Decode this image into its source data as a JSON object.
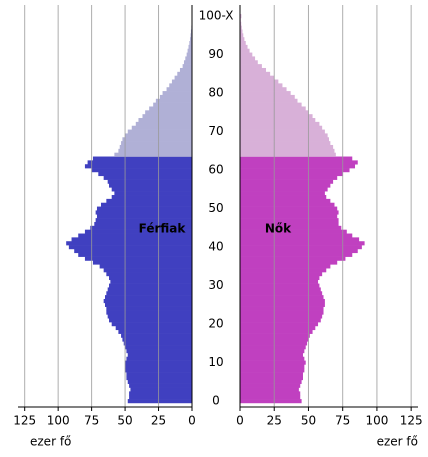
{
  "chart_data": {
    "type": "population_pyramid",
    "x_label": "ezer fő",
    "xlim": [
      0,
      130
    ],
    "xticks": [
      0,
      25,
      50,
      75,
      100,
      125
    ],
    "grid": true,
    "color_split_index": 64,
    "categories": [
      "0",
      null,
      null,
      null,
      null,
      null,
      null,
      null,
      null,
      null,
      "10",
      null,
      null,
      null,
      null,
      null,
      null,
      null,
      null,
      null,
      "20",
      null,
      null,
      null,
      null,
      null,
      null,
      null,
      null,
      null,
      "30",
      null,
      null,
      null,
      null,
      null,
      null,
      null,
      null,
      null,
      "40",
      null,
      null,
      null,
      null,
      null,
      null,
      null,
      null,
      null,
      "50",
      null,
      null,
      null,
      null,
      null,
      null,
      null,
      null,
      null,
      "60",
      null,
      null,
      null,
      null,
      null,
      null,
      null,
      null,
      null,
      "70",
      null,
      null,
      null,
      null,
      null,
      null,
      null,
      null,
      null,
      "80",
      null,
      null,
      null,
      null,
      null,
      null,
      null,
      null,
      null,
      "90",
      null,
      null,
      null,
      null,
      null,
      null,
      null,
      null,
      null,
      "100-X"
    ],
    "series": [
      {
        "name": "Férfiak",
        "side": "left",
        "color": "#4040c0",
        "color_upper": "#b0b0d6",
        "values": [
          48,
          47,
          47,
          46,
          47,
          48,
          49,
          49,
          50,
          50,
          50,
          49,
          48,
          49,
          50,
          51,
          52,
          53,
          55,
          57,
          60,
          62,
          63,
          64,
          64,
          65,
          66,
          65,
          64,
          63,
          62,
          61,
          62,
          64,
          66,
          69,
          74,
          80,
          85,
          88,
          92,
          94,
          90,
          85,
          80,
          76,
          73,
          72,
          71,
          72,
          71,
          68,
          64,
          60,
          58,
          60,
          62,
          63,
          66,
          70,
          75,
          80,
          78,
          74,
          58,
          55,
          54,
          53,
          52,
          50,
          48,
          45,
          42,
          40,
          37,
          35,
          32,
          29,
          27,
          24,
          22,
          19,
          17,
          15,
          13,
          11,
          9,
          7,
          6,
          5,
          4,
          3.3,
          2.6,
          2,
          1.5,
          1.1,
          0.8,
          0.5,
          0.3,
          0.2,
          0.3
        ]
      },
      {
        "name": "Nők",
        "side": "right",
        "color": "#c040c0",
        "color_upper": "#d8b0d8",
        "values": [
          45,
          44,
          44,
          43,
          44,
          45,
          46,
          46,
          47,
          47,
          48,
          47,
          46,
          47,
          48,
          49,
          50,
          51,
          53,
          55,
          57,
          59,
          60,
          61,
          61,
          62,
          62,
          61,
          60,
          59,
          58,
          57,
          58,
          60,
          63,
          66,
          71,
          77,
          82,
          86,
          89,
          91,
          87,
          82,
          78,
          74,
          72,
          72,
          71,
          72,
          71,
          69,
          66,
          63,
          62,
          64,
          66,
          68,
          71,
          75,
          80,
          84,
          86,
          82,
          70,
          69,
          68,
          66,
          65,
          64,
          62,
          60,
          58,
          55,
          53,
          50,
          48,
          45,
          42,
          40,
          37,
          34,
          31,
          28,
          25,
          22,
          19,
          16,
          13,
          11,
          9,
          7,
          5.5,
          4.2,
          3.2,
          2.4,
          1.8,
          1.3,
          0.9,
          0.6,
          1
        ]
      }
    ]
  }
}
